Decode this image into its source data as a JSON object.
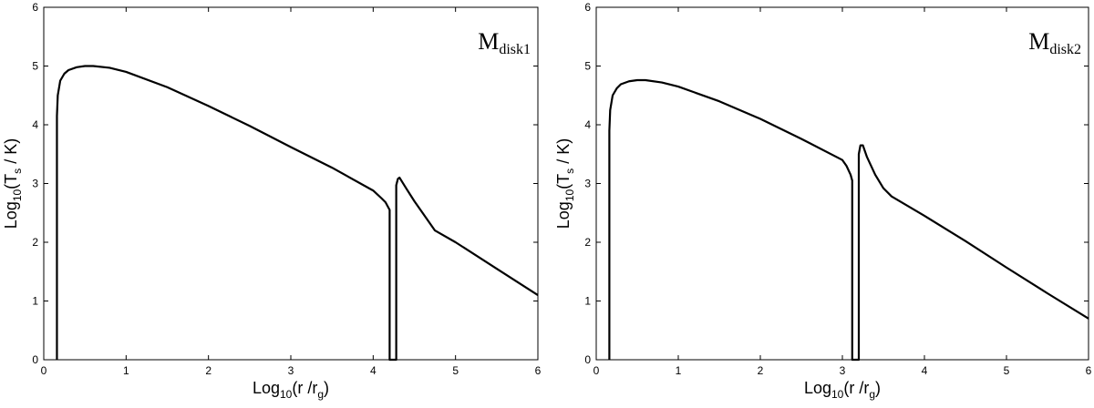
{
  "chart_data": [
    {
      "type": "line",
      "panel_label": {
        "main": "M",
        "sub": "disk1"
      },
      "xlabel": {
        "main": "Log",
        "base": "10",
        "open": "(r /r",
        "var_sub": "g",
        "close": ")"
      },
      "ylabel": {
        "main": "Log",
        "base": "10",
        "open": "(T",
        "var_sub": "s",
        "close": " / K)"
      },
      "xlim": [
        0,
        6
      ],
      "ylim": [
        0,
        6
      ],
      "xticks": [
        "0",
        "1",
        "2",
        "3",
        "4",
        "5",
        "6"
      ],
      "yticks": [
        "0",
        "1",
        "2",
        "3",
        "4",
        "5",
        "6"
      ],
      "grid": false,
      "series": [
        {
          "x": [
            0.16,
            0.16,
            0.17,
            0.2,
            0.25,
            0.3,
            0.4,
            0.5,
            0.6,
            0.8,
            1.0,
            1.5,
            2.0,
            2.5,
            3.0,
            3.5,
            4.0,
            4.1,
            4.15,
            4.2,
            4.2,
            4.28,
            4.28,
            4.3,
            4.32,
            4.4,
            4.5,
            4.6,
            4.75,
            5.0,
            5.5,
            6.0
          ],
          "y": [
            0.0,
            4.15,
            4.5,
            4.75,
            4.87,
            4.93,
            4.98,
            5.0,
            5.0,
            4.97,
            4.9,
            4.64,
            4.32,
            3.98,
            3.62,
            3.27,
            2.88,
            2.75,
            2.68,
            2.55,
            0.0,
            0.0,
            2.97,
            3.08,
            3.1,
            2.92,
            2.7,
            2.5,
            2.2,
            2.0,
            1.55,
            1.1
          ]
        }
      ]
    },
    {
      "type": "line",
      "panel_label": {
        "main": "M",
        "sub": "disk2"
      },
      "xlabel": {
        "main": "Log",
        "base": "10",
        "open": "(r /r",
        "var_sub": "g",
        "close": ")"
      },
      "ylabel": {
        "main": "Log",
        "base": "10",
        "open": "(T",
        "var_sub": "s",
        "close": " / K)"
      },
      "xlim": [
        0,
        6
      ],
      "ylim": [
        0,
        6
      ],
      "xticks": [
        "0",
        "1",
        "2",
        "3",
        "4",
        "5",
        "6"
      ],
      "yticks": [
        "0",
        "1",
        "2",
        "3",
        "4",
        "5",
        "6"
      ],
      "grid": false,
      "series": [
        {
          "x": [
            0.16,
            0.16,
            0.17,
            0.2,
            0.25,
            0.3,
            0.4,
            0.5,
            0.6,
            0.8,
            1.0,
            1.5,
            2.0,
            2.5,
            3.0,
            3.05,
            3.1,
            3.12,
            3.12,
            3.2,
            3.2,
            3.22,
            3.25,
            3.3,
            3.4,
            3.5,
            3.6,
            4.0,
            4.5,
            5.0,
            5.5,
            6.0
          ],
          "y": [
            0.0,
            3.9,
            4.25,
            4.5,
            4.62,
            4.69,
            4.74,
            4.76,
            4.76,
            4.72,
            4.65,
            4.4,
            4.1,
            3.76,
            3.4,
            3.3,
            3.15,
            3.05,
            0.0,
            0.0,
            3.5,
            3.65,
            3.65,
            3.45,
            3.15,
            2.92,
            2.78,
            2.45,
            2.02,
            1.57,
            1.13,
            0.7
          ]
        }
      ]
    }
  ]
}
